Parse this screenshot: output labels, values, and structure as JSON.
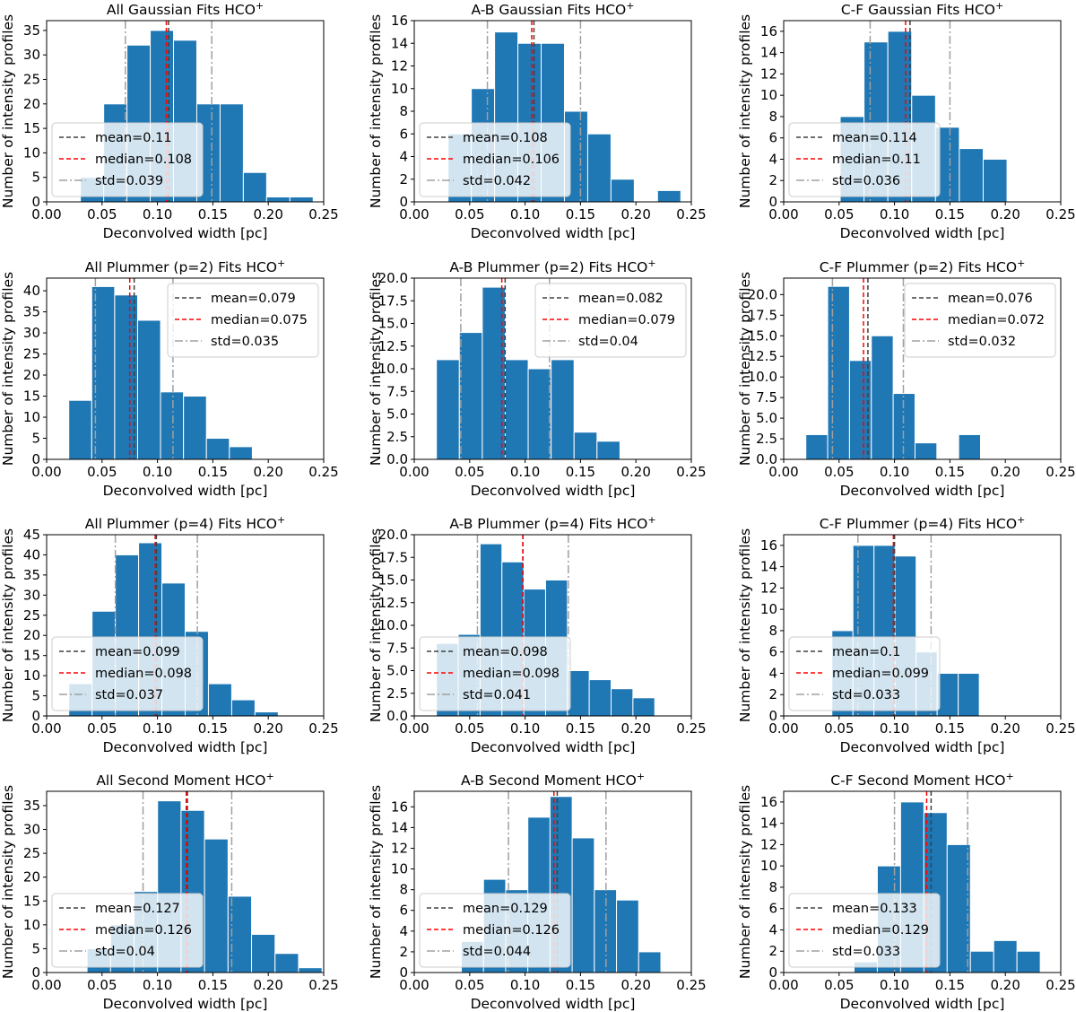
{
  "figure": {
    "xlabel": "Deconvolved width [pc]",
    "ylabel": "Number of intensity profiles",
    "bar_color": "#1f77b4",
    "mean_color": "#404040",
    "median_color": "#ff0000",
    "std_color": "#a0a0a0"
  },
  "chart_data": [
    {
      "type": "bar",
      "title": "All Gaussian Fits HCO",
      "sup": "+",
      "xlim": [
        0,
        0.25
      ],
      "xticks": [
        "0.00",
        "0.05",
        "0.10",
        "0.15",
        "0.20",
        "0.25"
      ],
      "ylim": [
        0,
        37
      ],
      "yticks": [
        0,
        5,
        10,
        15,
        20,
        25,
        30,
        35
      ],
      "bin_edges": [
        0.0305,
        0.0515,
        0.0725,
        0.0935,
        0.1145,
        0.1355,
        0.1565,
        0.1775,
        0.1985,
        0.2195,
        0.2405
      ],
      "values": [
        5,
        20,
        32,
        35,
        33,
        20,
        20,
        6,
        1,
        1
      ],
      "mean": 0.11,
      "median": 0.108,
      "std": 0.039,
      "legend": [
        "mean=0.11",
        "median=0.108",
        "std=0.039"
      ],
      "legend_loc": "lower-left"
    },
    {
      "type": "bar",
      "title": "A-B Gaussian Fits HCO",
      "sup": "+",
      "xlim": [
        0,
        0.25
      ],
      "xticks": [
        "0.00",
        "0.05",
        "0.10",
        "0.15",
        "0.20",
        "0.25"
      ],
      "ylim": [
        0,
        16
      ],
      "yticks": [
        0,
        2,
        4,
        6,
        8,
        10,
        12,
        14,
        16
      ],
      "bin_edges": [
        0.0305,
        0.0515,
        0.0725,
        0.0935,
        0.1145,
        0.1355,
        0.1565,
        0.1775,
        0.1985,
        0.2195,
        0.2405
      ],
      "values": [
        6,
        10,
        15,
        14,
        14,
        8,
        6,
        2,
        0,
        1
      ],
      "mean": 0.108,
      "median": 0.106,
      "std": 0.042,
      "legend": [
        "mean=0.108",
        "median=0.106",
        "std=0.042"
      ],
      "legend_loc": "lower-left"
    },
    {
      "type": "bar",
      "title": "C-F Gaussian Fits HCO",
      "sup": "+",
      "xlim": [
        0,
        0.25
      ],
      "xticks": [
        "0.00",
        "0.05",
        "0.10",
        "0.15",
        "0.20",
        "0.25"
      ],
      "ylim": [
        0,
        17
      ],
      "yticks": [
        0,
        2,
        4,
        6,
        8,
        10,
        12,
        14,
        16
      ],
      "bin_edges": [
        0.051,
        0.0725,
        0.094,
        0.1155,
        0.137,
        0.1585,
        0.18,
        0.2015
      ],
      "values": [
        8,
        15,
        16,
        10,
        7,
        5,
        4
      ],
      "mean": 0.114,
      "median": 0.11,
      "std": 0.036,
      "legend": [
        "mean=0.114",
        "median=0.11",
        "std=0.036"
      ],
      "legend_loc": "lower-left"
    },
    {
      "type": "bar",
      "title": "All Plummer (p=2) Fits HCO",
      "sup": "+",
      "xlim": [
        0,
        0.25
      ],
      "xticks": [
        "0.00",
        "0.05",
        "0.10",
        "0.15",
        "0.20",
        "0.25"
      ],
      "ylim": [
        0,
        43
      ],
      "yticks": [
        0,
        5,
        10,
        15,
        20,
        25,
        30,
        35,
        40
      ],
      "bin_edges": [
        0.02,
        0.0407,
        0.0614,
        0.0821,
        0.1028,
        0.1235,
        0.1442,
        0.1649,
        0.1856
      ],
      "values": [
        14,
        41,
        39,
        33,
        16,
        15,
        5,
        3
      ],
      "mean": 0.079,
      "median": 0.075,
      "std": 0.035,
      "legend": [
        "mean=0.079",
        "median=0.075",
        "std=0.035"
      ],
      "legend_loc": "upper-right"
    },
    {
      "type": "bar",
      "title": "A-B Plummer (p=2) Fits HCO",
      "sup": "+",
      "xlim": [
        0,
        0.25
      ],
      "xticks": [
        "0.00",
        "0.05",
        "0.10",
        "0.15",
        "0.20",
        "0.25"
      ],
      "ylim": [
        0,
        20
      ],
      "yticks": [
        "0.0",
        "2.5",
        "5.0",
        "7.5",
        "10.0",
        "12.5",
        "15.0",
        "17.5",
        "20.0"
      ],
      "ytick_values": [
        0,
        2.5,
        5,
        7.5,
        10,
        12.5,
        15,
        17.5,
        20
      ],
      "bin_edges": [
        0.02,
        0.0407,
        0.0614,
        0.0821,
        0.1028,
        0.1235,
        0.1442,
        0.1649,
        0.1856
      ],
      "values": [
        11,
        14,
        19,
        11,
        10,
        11,
        3,
        2
      ],
      "mean": 0.082,
      "median": 0.079,
      "std": 0.04,
      "legend": [
        "mean=0.082",
        "median=0.079",
        "std=0.04"
      ],
      "legend_loc": "upper-right"
    },
    {
      "type": "bar",
      "title": "C-F Plummer (p=2) Fits HCO",
      "sup": "+",
      "xlim": [
        0,
        0.25
      ],
      "xticks": [
        "0.00",
        "0.05",
        "0.10",
        "0.15",
        "0.20",
        "0.25"
      ],
      "ylim": [
        0,
        22
      ],
      "yticks": [
        "0.0",
        "2.5",
        "5.0",
        "7.5",
        "10.0",
        "12.5",
        "15.0",
        "17.5",
        "20.0"
      ],
      "ytick_values": [
        0,
        2.5,
        5,
        7.5,
        10,
        12.5,
        15,
        17.5,
        20
      ],
      "bin_edges": [
        0.02,
        0.0397,
        0.0594,
        0.0791,
        0.0988,
        0.1185,
        0.1382,
        0.1579,
        0.1776
      ],
      "values": [
        3,
        21,
        12,
        15,
        8,
        2,
        0,
        3
      ],
      "mean": 0.076,
      "median": 0.072,
      "std": 0.032,
      "legend": [
        "mean=0.076",
        "median=0.072",
        "std=0.032"
      ],
      "legend_loc": "upper-right"
    },
    {
      "type": "bar",
      "title": "All Plummer (p=4) Fits HCO",
      "sup": "+",
      "xlim": [
        0,
        0.25
      ],
      "xticks": [
        "0.00",
        "0.05",
        "0.10",
        "0.15",
        "0.20",
        "0.25"
      ],
      "ylim": [
        0,
        45
      ],
      "yticks": [
        0,
        5,
        10,
        15,
        20,
        25,
        30,
        35,
        40,
        45
      ],
      "bin_edges": [
        0.02,
        0.041,
        0.062,
        0.083,
        0.104,
        0.125,
        0.146,
        0.167,
        0.188,
        0.209,
        0.23
      ],
      "values": [
        8,
        26,
        40,
        43,
        33,
        21,
        8,
        4,
        1,
        0
      ],
      "mean": 0.099,
      "median": 0.098,
      "std": 0.037,
      "legend": [
        "mean=0.099",
        "median=0.098",
        "std=0.037"
      ],
      "legend_loc": "lower-left"
    },
    {
      "type": "bar",
      "title": "A-B Plummer (p=4) Fits HCO",
      "sup": "+",
      "xlim": [
        0,
        0.25
      ],
      "xticks": [
        "0.00",
        "0.05",
        "0.10",
        "0.15",
        "0.20",
        "0.25"
      ],
      "ylim": [
        0,
        20
      ],
      "yticks": [
        "0.0",
        "2.5",
        "5.0",
        "7.5",
        "10.0",
        "12.5",
        "15.0",
        "17.5",
        "20.0"
      ],
      "ytick_values": [
        0,
        2.5,
        5,
        7.5,
        10,
        12.5,
        15,
        17.5,
        20
      ],
      "bin_edges": [
        0.02,
        0.0397,
        0.0594,
        0.0791,
        0.0988,
        0.1185,
        0.1382,
        0.1579,
        0.1776,
        0.1973,
        0.217
      ],
      "values": [
        8,
        9,
        19,
        17,
        14,
        15,
        5,
        4,
        3,
        2
      ],
      "mean": 0.098,
      "median": 0.098,
      "std": 0.041,
      "legend": [
        "mean=0.098",
        "median=0.098",
        "std=0.041"
      ],
      "legend_loc": "lower-left"
    },
    {
      "type": "bar",
      "title": "C-F Plummer (p=4) Fits HCO",
      "sup": "+",
      "xlim": [
        0,
        0.25
      ],
      "xticks": [
        "0.00",
        "0.05",
        "0.10",
        "0.15",
        "0.20",
        "0.25"
      ],
      "ylim": [
        0,
        17
      ],
      "yticks": [
        0,
        2,
        4,
        6,
        8,
        10,
        12,
        14,
        16
      ],
      "bin_edges": [
        0.0435,
        0.0625,
        0.0815,
        0.1005,
        0.1195,
        0.1385,
        0.1575,
        0.1765
      ],
      "values": [
        8,
        16,
        16,
        15,
        6,
        4,
        4
      ],
      "mean": 0.1,
      "median": 0.099,
      "std": 0.033,
      "legend": [
        "mean=0.1",
        "median=0.099",
        "std=0.033"
      ],
      "legend_loc": "lower-left"
    },
    {
      "type": "bar",
      "title": "All Second Moment HCO",
      "sup": "+",
      "xlim": [
        0,
        0.25
      ],
      "xticks": [
        "0.00",
        "0.05",
        "0.10",
        "0.15",
        "0.20",
        "0.25"
      ],
      "ylim": [
        0,
        38
      ],
      "yticks": [
        0,
        5,
        10,
        15,
        20,
        25,
        30,
        35
      ],
      "bin_edges": [
        0.0365,
        0.0577,
        0.0789,
        0.1001,
        0.1213,
        0.1425,
        0.1637,
        0.1849,
        0.2061,
        0.2273,
        0.2485
      ],
      "values": [
        5,
        10,
        17,
        36,
        34,
        28,
        16,
        8,
        4,
        1
      ],
      "mean": 0.127,
      "median": 0.126,
      "std": 0.04,
      "legend": [
        "mean=0.127",
        "median=0.126",
        "std=0.04"
      ],
      "legend_loc": "lower-left"
    },
    {
      "type": "bar",
      "title": "A-B Second Moment HCO",
      "sup": "+",
      "xlim": [
        0,
        0.25
      ],
      "xticks": [
        "0.00",
        "0.05",
        "0.10",
        "0.15",
        "0.20",
        "0.25"
      ],
      "ylim": [
        0,
        17.5
      ],
      "yticks": [
        0,
        2,
        4,
        6,
        8,
        10,
        12,
        14,
        16
      ],
      "bin_edges": [
        0.0425,
        0.0625,
        0.0825,
        0.1025,
        0.1225,
        0.1425,
        0.1625,
        0.1825,
        0.2025,
        0.2225
      ],
      "values": [
        3,
        9,
        8,
        15,
        17,
        13,
        8,
        7,
        2
      ],
      "mean": 0.129,
      "median": 0.126,
      "std": 0.044,
      "legend": [
        "mean=0.129",
        "median=0.126",
        "std=0.044"
      ],
      "legend_loc": "lower-left"
    },
    {
      "type": "bar",
      "title": "C-F Second Moment HCO",
      "sup": "+",
      "xlim": [
        0,
        0.25
      ],
      "xticks": [
        "0.00",
        "0.05",
        "0.10",
        "0.15",
        "0.20",
        "0.25"
      ],
      "ylim": [
        0,
        17
      ],
      "yticks": [
        0,
        2,
        4,
        6,
        8,
        10,
        12,
        14,
        16
      ],
      "bin_edges": [
        0.0635,
        0.0845,
        0.1055,
        0.1265,
        0.1475,
        0.1685,
        0.1895,
        0.2105,
        0.2315
      ],
      "values": [
        1,
        10,
        16,
        15,
        12,
        2,
        3,
        2
      ],
      "mean": 0.133,
      "median": 0.129,
      "std": 0.033,
      "legend": [
        "mean=0.133",
        "median=0.129",
        "std=0.033"
      ],
      "legend_loc": "lower-left"
    }
  ]
}
